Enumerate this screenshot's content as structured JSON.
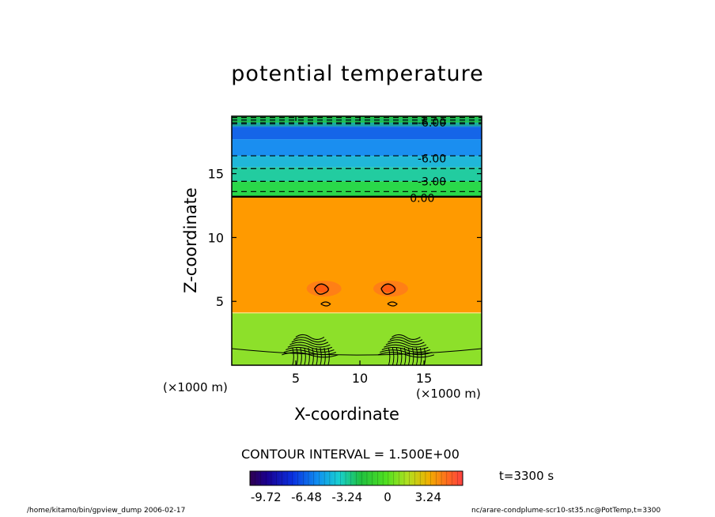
{
  "chart_data": {
    "type": "heatmap",
    "title": "potential temperature",
    "xlabel": "X-coordinate",
    "ylabel": "Z-coordinate",
    "x_unit_label": "(×1000 m)",
    "xlim": [
      0,
      19.5
    ],
    "ylim": [
      0,
      19.5
    ],
    "x_ticks": [
      "5",
      "10",
      "15"
    ],
    "y_ticks": [
      "5",
      "10",
      "15"
    ],
    "x_tick_values": [
      5,
      10,
      15
    ],
    "y_tick_values": [
      5,
      10,
      15
    ],
    "contour_labels": [
      {
        "text": "-6.00",
        "x": 14.5,
        "z": 19.0
      },
      {
        "text": "-6.00",
        "x": 14.5,
        "z": 16.2
      },
      {
        "text": "-3.00",
        "x": 14.5,
        "z": 14.4
      },
      {
        "text": "0.00",
        "x": 13.9,
        "z": 13.1
      }
    ],
    "layers": [
      {
        "z0": 18.7,
        "z1": 19.5,
        "color": "#22c64a"
      },
      {
        "z0": 17.7,
        "z1": 18.7,
        "color": "#1565e8"
      },
      {
        "z0": 16.4,
        "z1": 17.7,
        "color": "#1a8ef0"
      },
      {
        "z0": 15.5,
        "z1": 16.4,
        "color": "#20b7d8"
      },
      {
        "z0": 14.4,
        "z1": 15.5,
        "color": "#22cca0"
      },
      {
        "z0": 13.2,
        "z1": 14.4,
        "color": "#2ad84a"
      },
      {
        "z0": 4.1,
        "z1": 13.2,
        "color": "#ff9a00"
      },
      {
        "z0": 0.0,
        "z1": 4.1,
        "color": "#8de02a"
      }
    ],
    "colorbar": {
      "tick_labels": [
        "-9.72",
        "-6.48",
        "-3.24",
        "0",
        "3.24"
      ],
      "tick_values": [
        -9.72,
        -6.48,
        -3.24,
        0,
        3.24
      ],
      "min": -11.0,
      "max": 6.0
    },
    "contour_interval": "CONTOUR INTERVAL = 1.500E+00",
    "time": "t=3300 s"
  },
  "footer": {
    "left": "/home/kitamo/bin/gpview_dump  2006-02-17",
    "right": "nc/arare-condplume-scr10-st35.nc@PotTemp,t=3300"
  }
}
